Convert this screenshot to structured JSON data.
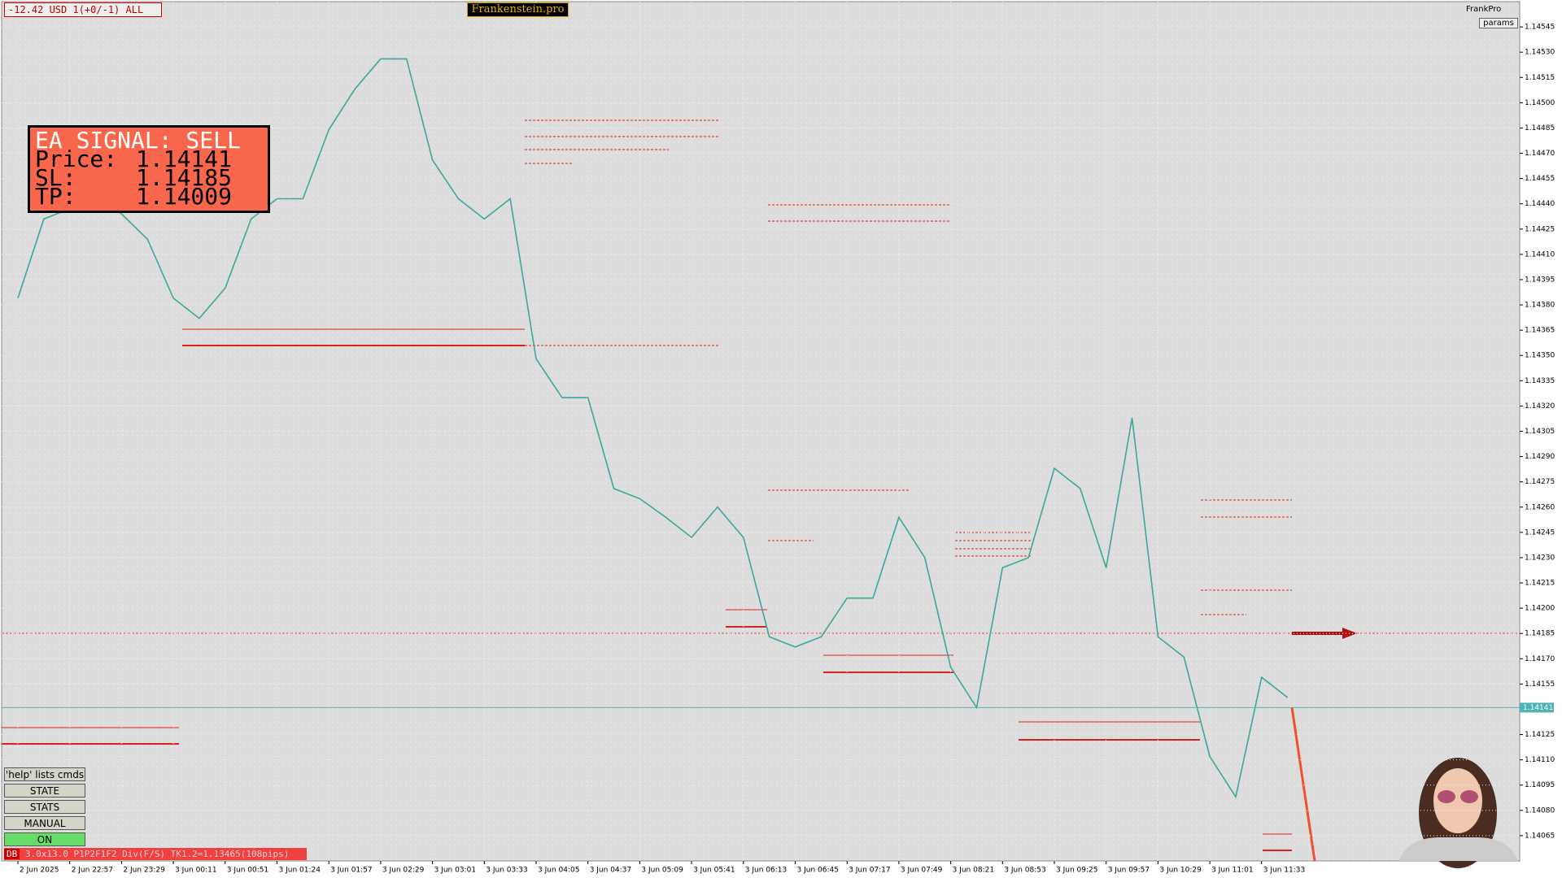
{
  "header": {
    "account": "-12.42 USD 1(+0/-1) ALL",
    "brand": "Frankenstein.pro",
    "user": "FrankPro",
    "params": "params"
  },
  "signal": {
    "title": "EA SIGNAL: SELL",
    "lines": [
      {
        "label": "Price:",
        "value": "1.14141"
      },
      {
        "label": "SL:",
        "value": "1.14185"
      },
      {
        "label": "TP:",
        "value": "1.14009"
      }
    ]
  },
  "controls": {
    "help": "'help' lists cmds",
    "buttons": [
      "STATE",
      "STATS",
      "MANUAL",
      "ON"
    ]
  },
  "status": {
    "tag": "DB",
    "text": "3.0x13.0 P1P2F1F2 Div(F/S) TK1.2=1.13465(108pips)"
  },
  "chart_data": {
    "type": "line",
    "color": "#3aa89b",
    "grid": true,
    "categories": [
      "2 Jun 2025",
      null,
      "2 Jun 22:57",
      null,
      "2 Jun 23:29",
      null,
      "3 Jun 00:11",
      null,
      "3 Jun 00:51",
      null,
      "3 Jun 01:24",
      null,
      "3 Jun 01:57",
      null,
      "3 Jun 02:29",
      null,
      "3 Jun 03:01",
      null,
      "3 Jun 03:33",
      null,
      "3 Jun 04:05",
      null,
      "3 Jun 04:37",
      null,
      "3 Jun 05:09",
      null,
      "3 Jun 05:41",
      null,
      "3 Jun 06:13",
      null,
      "3 Jun 06:45",
      null,
      "3 Jun 07:17",
      null,
      "3 Jun 07:49",
      null,
      "3 Jun 08:21",
      null,
      "3 Jun 08:53",
      null,
      "3 Jun 09:25",
      null,
      "3 Jun 09:57",
      null,
      "3 Jun 10:29",
      null,
      "3 Jun 11:01",
      null,
      "3 Jun 11:33",
      null
    ],
    "values": [
      1.14384,
      1.14431,
      1.14437,
      1.14446,
      1.14434,
      1.14419,
      1.14384,
      1.14372,
      1.1439,
      1.14431,
      1.14443,
      1.14443,
      1.14484,
      1.14508,
      1.14526,
      1.14526,
      1.14466,
      1.14443,
      1.14431,
      1.14443,
      1.14348,
      1.14325,
      1.14325,
      1.14271,
      1.14265,
      1.14254,
      1.14242,
      1.1426,
      1.14242,
      1.14183,
      1.14177,
      1.14183,
      1.14206,
      1.14206,
      1.14254,
      1.1423,
      1.14165,
      1.14141,
      1.14224,
      1.1423,
      1.14283,
      1.14271,
      1.14224,
      1.14313,
      1.14183,
      1.14171,
      1.14112,
      1.14088,
      1.14159,
      1.14147
    ],
    "price_line": 1.14141,
    "ylim": [
      1.1405,
      1.1456
    ],
    "yticks": [
      1.14545,
      {
        "value": 1.1453,
        "label": "1.14530"
      },
      1.14515,
      {
        "value": 1.145,
        "label": "1.14500"
      },
      1.14485,
      {
        "value": 1.1447,
        "label": "1.14470"
      },
      1.14455,
      {
        "value": 1.1444,
        "label": "1.14440"
      },
      1.14425,
      {
        "value": 1.1441,
        "label": "1.14410"
      },
      1.14395,
      {
        "value": 1.1438,
        "label": "1.14380"
      },
      1.14365,
      {
        "value": 1.1435,
        "label": "1.14350"
      },
      1.14335,
      {
        "value": 1.1432,
        "label": "1.14320"
      },
      1.14305,
      {
        "value": 1.1429,
        "label": "1.14290"
      },
      1.14275,
      {
        "value": 1.1426,
        "label": "1.14260"
      },
      1.14245,
      {
        "value": 1.1423,
        "label": "1.14230"
      },
      1.14215,
      {
        "value": 1.142,
        "label": "1.14200"
      },
      1.14185,
      {
        "value": 1.1417,
        "label": "1.14170"
      },
      1.14155,
      1.14125,
      {
        "value": 1.1411,
        "label": "1.14110"
      },
      1.14095,
      {
        "value": 1.1408,
        "label": "1.14080"
      },
      1.14065
    ]
  }
}
